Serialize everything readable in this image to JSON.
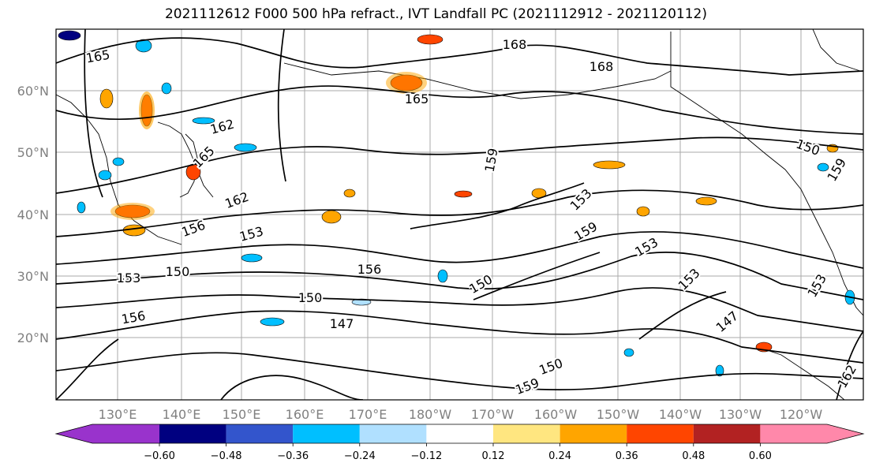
{
  "title": "2021112612 F000 500 hPa refract., IVT Landfall PC (2021112912 - 2021120112)",
  "map": {
    "lon_labels": [
      "130°E",
      "140°E",
      "150°E",
      "160°E",
      "170°E",
      "180°W",
      "170°W",
      "160°W",
      "150°W",
      "140°W",
      "130°W",
      "120°W"
    ],
    "lat_labels": [
      "60°N",
      "50°N",
      "40°N",
      "30°N",
      "20°N"
    ],
    "contour_labels": [
      "165",
      "168",
      "168",
      "165",
      "162",
      "165",
      "159",
      "150",
      "153",
      "153",
      "162",
      "159",
      "156",
      "153",
      "153",
      "159",
      "150",
      "156",
      "150",
      "153",
      "150",
      "147",
      "147",
      "159",
      "156",
      "150",
      "153",
      "162"
    ]
  },
  "colorbar": {
    "colors": [
      "#9933cc",
      "#000080",
      "#3355cc",
      "#00bfff",
      "#b0e0ff",
      "#ffffff",
      "#ffe680",
      "#ffa500",
      "#ff4500",
      "#b22222",
      "#ff88aa"
    ],
    "tick_labels": [
      "−0.60",
      "−0.48",
      "−0.36",
      "−0.24",
      "−0.12",
      "0.12",
      "0.24",
      "0.36",
      "0.48",
      "0.60"
    ]
  }
}
